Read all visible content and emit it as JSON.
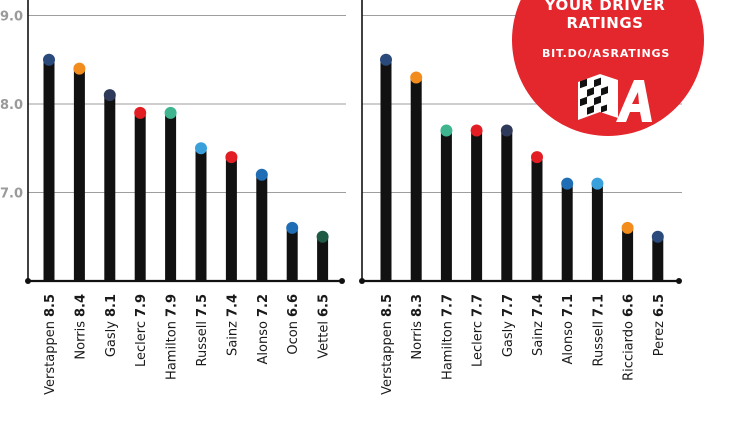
{
  "colors": {
    "bar": "#111111",
    "grid": "#9e9e9e",
    "axis": "#111111",
    "badge": "#e4262d",
    "redbull": "#2b4a7c",
    "mclaren": "#f28c1c",
    "alphatauri": "#2f3a5a",
    "ferrari": "#e21e24",
    "mercedes": "#3fb58f",
    "williams": "#3aa0dc",
    "alpine": "#1f6db4",
    "astonmartin": "#1e5a44"
  },
  "badge": {
    "line1": "YOUR DRIVER",
    "line2": "RATINGS",
    "url": "BIT.DO/ASRATINGS",
    "logo": "autosport-checkered-flag-logo"
  },
  "chart_data": [
    {
      "type": "bar",
      "y_ticks": [
        "9.0",
        "8.0",
        "7.0"
      ],
      "ylim": [
        6.0,
        9.0
      ],
      "grid": true,
      "series": [
        {
          "categories": [
            "Verstappen",
            "Norris",
            "Gasly",
            "Leclerc",
            "Hamilton",
            "Russell",
            "Sainz",
            "Alonso",
            "Ocon",
            "Vettel"
          ],
          "value_labels": [
            "8.5",
            "8.4",
            "8.1",
            "7.9",
            "7.9",
            "7.5",
            "7.4",
            "7.2",
            "6.6",
            "6.5"
          ],
          "values": [
            8.5,
            8.4,
            8.1,
            7.9,
            7.9,
            7.5,
            7.4,
            7.2,
            6.6,
            6.5
          ],
          "team_colors": [
            "redbull",
            "mclaren",
            "alphatauri",
            "ferrari",
            "mercedes",
            "williams",
            "ferrari",
            "alpine",
            "alpine",
            "astonmartin"
          ]
        }
      ]
    },
    {
      "type": "bar",
      "ylim": [
        6.0,
        9.0
      ],
      "grid": true,
      "series": [
        {
          "categories": [
            "Verstappen",
            "Norris",
            "Hamilton",
            "Leclerc",
            "Gasly",
            "Sainz",
            "Alonso",
            "Russell",
            "Ricciardo",
            "Perez"
          ],
          "value_labels": [
            "8.5",
            "8.3",
            "7.7",
            "7.7",
            "7.7",
            "7.4",
            "7.1",
            "7.1",
            "6.6",
            "6.5"
          ],
          "values": [
            8.5,
            8.3,
            7.7,
            7.7,
            7.7,
            7.4,
            7.1,
            7.1,
            6.6,
            6.5
          ],
          "team_colors": [
            "redbull",
            "mclaren",
            "mercedes",
            "ferrari",
            "alphatauri",
            "ferrari",
            "alpine",
            "williams",
            "mclaren",
            "redbull"
          ]
        }
      ]
    }
  ]
}
